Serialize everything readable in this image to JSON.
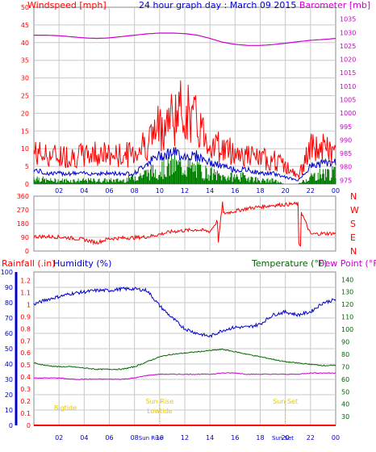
{
  "colors": {
    "wind": "#ff0000",
    "gust_avg": "#0000cc",
    "wind_low": "#008000",
    "baro": "#cc00cc",
    "rain": "#ff0000",
    "humidity": "#0000cc",
    "temperature": "#006600",
    "dewpoint": "#cc00cc",
    "sun": "#e6c800",
    "grid": "#c8c8c8",
    "title": "#0000cc"
  },
  "chart_data": [
    {
      "type": "line",
      "id": "wind-baro",
      "title": "24 hour graph day : March 09 2015",
      "left_label": "Windspeed [mph]",
      "right_label": "Barometer [mb]",
      "x_ticks": [
        "02",
        "04",
        "06",
        "08",
        "10",
        "12",
        "14",
        "16",
        "18",
        "20",
        "22",
        "00"
      ],
      "left_ticks": [
        "0",
        "5",
        "10",
        "15",
        "20",
        "25",
        "30",
        "35",
        "40",
        "45",
        "50"
      ],
      "right_ticks": [
        "975",
        "980",
        "985",
        "990",
        "995",
        "1000",
        "1005",
        "1010",
        "1015",
        "1020",
        "1025",
        "1030",
        "1035"
      ],
      "ylim_left": [
        0,
        50
      ],
      "ylim_right": [
        973.6,
        1039.4
      ],
      "series": [
        {
          "key": "wind_max",
          "axis": "left",
          "color_key": "wind",
          "x": [
            0,
            1,
            2,
            3,
            4,
            5,
            6,
            7,
            8,
            9,
            10,
            11,
            12,
            13,
            14,
            15,
            16,
            17,
            18,
            19,
            20,
            21,
            22,
            23,
            24
          ],
          "values": [
            9,
            8,
            8,
            8,
            8,
            9,
            8,
            8,
            9,
            12,
            16,
            19,
            21,
            17,
            12,
            10,
            9,
            8,
            7,
            7,
            5,
            2,
            10,
            10,
            9
          ]
        },
        {
          "key": "wind_avg",
          "axis": "left",
          "color_key": "gust_avg",
          "x": [
            0,
            1,
            2,
            3,
            4,
            5,
            6,
            7,
            8,
            9,
            10,
            11,
            12,
            13,
            14,
            15,
            16,
            17,
            18,
            19,
            20,
            21,
            22,
            23,
            24
          ],
          "values": [
            4,
            3,
            3,
            3,
            3,
            3,
            3,
            3,
            3,
            6,
            8,
            9,
            8,
            8,
            6,
            5,
            4,
            4,
            3,
            3,
            2,
            1,
            5,
            6,
            6
          ]
        },
        {
          "key": "wind_low",
          "axis": "left",
          "color_key": "wind_low",
          "x": [
            0,
            1,
            2,
            3,
            4,
            5,
            6,
            7,
            8,
            9,
            10,
            11,
            12,
            13,
            14,
            15,
            16,
            17,
            18,
            19,
            20,
            21,
            22,
            23,
            24
          ],
          "values": [
            2,
            1,
            1,
            1,
            1,
            1,
            1,
            1,
            2,
            3,
            4,
            5,
            5,
            4,
            3,
            2,
            2,
            2,
            1,
            1,
            0,
            0,
            2,
            3,
            3
          ]
        },
        {
          "name": "Barometer",
          "axis": "right",
          "color_key": "baro",
          "x": [
            0,
            1,
            2,
            3,
            4,
            5,
            6,
            7,
            8,
            9,
            10,
            11,
            12,
            13,
            14,
            15,
            16,
            17,
            18,
            19,
            20,
            21,
            22,
            23,
            24
          ],
          "values": [
            1029.0,
            1029.0,
            1028.8,
            1028.4,
            1028.0,
            1027.8,
            1028.0,
            1028.5,
            1029.0,
            1029.5,
            1029.8,
            1029.8,
            1029.6,
            1029.0,
            1027.8,
            1026.4,
            1025.6,
            1025.2,
            1025.2,
            1025.5,
            1026.0,
            1026.6,
            1027.1,
            1027.4,
            1027.8
          ]
        }
      ]
    },
    {
      "type": "line",
      "id": "wind-direction",
      "y_ticks": [
        "0",
        "90",
        "180",
        "270",
        "360"
      ],
      "compass": [
        "N",
        "W",
        "S",
        "E",
        "N"
      ],
      "ylim": [
        0,
        360
      ],
      "series": [
        {
          "key": "direction",
          "color_key": "wind",
          "x": [
            0,
            1,
            2,
            3,
            4,
            5,
            6,
            7,
            8,
            9,
            10,
            11,
            12,
            13,
            14,
            15,
            16,
            17,
            18,
            19,
            20,
            21,
            22,
            23,
            24
          ],
          "values": [
            95,
            95,
            92,
            85,
            75,
            55,
            82,
            85,
            88,
            93,
            110,
            128,
            135,
            140,
            128,
            245,
            262,
            280,
            290,
            300,
            305,
            310,
            110,
            115,
            115
          ]
        }
      ]
    },
    {
      "type": "line",
      "id": "rain-hum-temp",
      "left_label": "Rainfall (.in)",
      "left2_label": "Humidity (%)",
      "right_label": "Temperature (°F)",
      "right2_label": "Dew Point (°F)",
      "rain_ticks": [
        "0",
        "0.1",
        "0.2",
        "0.3",
        "0.4",
        "0.5",
        "0.6",
        "0.7",
        "0.8",
        "0.9",
        "1",
        "1.1",
        "1.2"
      ],
      "hum_ticks": [
        "0",
        "10",
        "20",
        "30",
        "40",
        "50",
        "60",
        "70",
        "80",
        "90",
        "100"
      ],
      "temp_ticks": [
        "30",
        "40",
        "50",
        "60",
        "70",
        "80",
        "90",
        "100",
        "110",
        "120",
        "130",
        "140"
      ],
      "ylim_hum": [
        0,
        100
      ],
      "ylim_temp": [
        23,
        146
      ],
      "series": [
        {
          "name": "Humidity",
          "axis": "hum",
          "color_key": "humidity",
          "x": [
            0,
            1,
            2,
            3,
            4,
            5,
            6,
            7,
            8,
            9,
            10,
            11,
            12,
            13,
            14,
            15,
            16,
            17,
            18,
            19,
            20,
            21,
            22,
            23,
            24
          ],
          "values": [
            79,
            82,
            84,
            86,
            87,
            88,
            88,
            89,
            89,
            88,
            78,
            70,
            63,
            60,
            58,
            62,
            64,
            64,
            66,
            72,
            74,
            72,
            74,
            80,
            82
          ]
        },
        {
          "name": "Temperature",
          "axis": "temp",
          "color_key": "temperature",
          "x": [
            0,
            1,
            2,
            3,
            4,
            5,
            6,
            7,
            8,
            9,
            10,
            11,
            12,
            13,
            14,
            15,
            16,
            17,
            18,
            19,
            20,
            21,
            22,
            23,
            24
          ],
          "values": [
            73,
            71,
            70,
            70,
            69,
            68,
            68,
            68,
            70,
            74,
            78,
            80,
            81,
            82,
            83,
            84,
            82,
            80,
            78,
            76,
            74,
            73,
            72,
            71,
            71
          ]
        },
        {
          "name": "Dew Point",
          "axis": "temp",
          "color_key": "dewpoint",
          "x": [
            0,
            1,
            2,
            3,
            4,
            5,
            6,
            7,
            8,
            9,
            10,
            11,
            12,
            13,
            14,
            15,
            16,
            17,
            18,
            19,
            20,
            21,
            22,
            23,
            24
          ],
          "values": [
            61,
            61,
            61,
            60,
            60,
            60,
            60,
            60,
            61,
            63,
            64,
            64,
            64,
            64,
            64,
            65,
            65,
            64,
            64,
            64,
            64,
            64,
            65,
            65,
            65
          ]
        },
        {
          "name": "Rainfall",
          "axis": "hum",
          "color_key": "rain",
          "x": [
            0,
            24
          ],
          "values": [
            0,
            0
          ]
        }
      ],
      "annotations": [
        "Bigtide",
        "Sun Rise",
        "Lowtide",
        "Sun Set"
      ],
      "bottom_markers": [
        "Sun Rise",
        "Sun Set"
      ]
    }
  ]
}
